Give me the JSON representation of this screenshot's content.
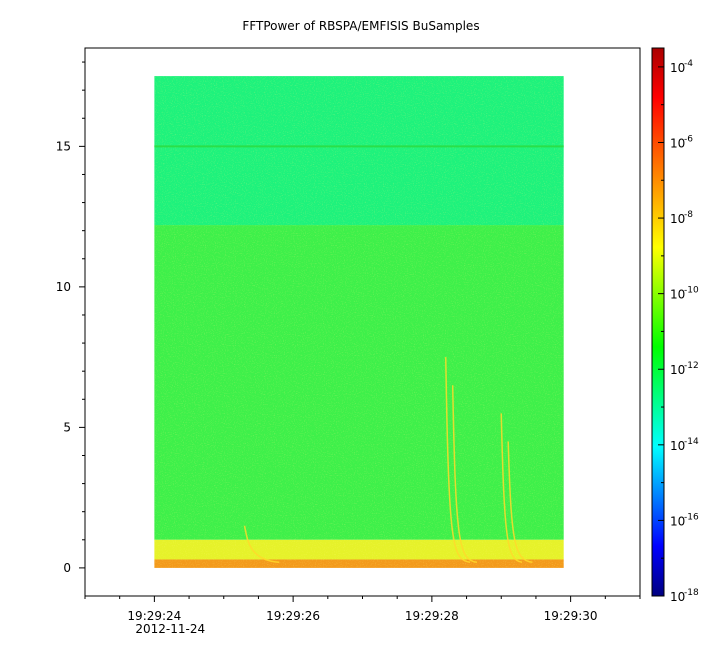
{
  "chart_data": {
    "type": "heatmap",
    "title": "FFTPower of RBSPA/EMFISIS  BuSamples",
    "xlabel": "",
    "ylabel": "",
    "x_ticks": [
      {
        "seconds": 24,
        "label": "19:29:24",
        "sublabel": "2012-11-24"
      },
      {
        "seconds": 26,
        "label": "19:29:26",
        "sublabel": ""
      },
      {
        "seconds": 28,
        "label": "19:29:28",
        "sublabel": ""
      },
      {
        "seconds": 30,
        "label": "19:29:30",
        "sublabel": ""
      }
    ],
    "xlim": [
      23,
      31
    ],
    "data_x_range": [
      24,
      29.9
    ],
    "ylim": [
      -1,
      18.5
    ],
    "data_y_range": [
      0,
      17.5
    ],
    "y_ticks": [
      0,
      5,
      10,
      15
    ],
    "colorbar": {
      "scale": "log",
      "range_exponent": [
        -18,
        -3.5
      ],
      "tick_base": "10",
      "tick_exponents": [
        -18,
        -16,
        -14,
        -12,
        -10,
        -8,
        -6,
        -4
      ],
      "colors": [
        "#00007f",
        "#0000ff",
        "#0080ff",
        "#00ffff",
        "#00ff80",
        "#00ff00",
        "#80ff00",
        "#ffff00",
        "#ffaa00",
        "#ff5500",
        "#ff0000",
        "#aa0000"
      ]
    },
    "bands": [
      {
        "y_range": [
          12.2,
          17.5
        ],
        "level_exponent": -12.5,
        "color": "#1ef27c"
      },
      {
        "y_range": [
          1.0,
          12.2
        ],
        "level_exponent": -10.3,
        "color": "#3ef04a"
      },
      {
        "y_range": [
          0.3,
          1.0
        ],
        "level_exponent": -8.3,
        "color": "#e6f22a"
      },
      {
        "y_range": [
          0.0,
          0.3
        ],
        "level_exponent": -7.2,
        "color": "#f39a1c"
      }
    ],
    "lines": [
      {
        "y": 15.0,
        "level_exponent": -10,
        "color": "#2adf48"
      }
    ],
    "chorus_elements": [
      {
        "start_x": 28.2,
        "end_x": 28.55,
        "top_y": 7.5
      },
      {
        "start_x": 28.3,
        "end_x": 28.65,
        "top_y": 6.5
      },
      {
        "start_x": 29.0,
        "end_x": 29.3,
        "top_y": 5.5
      },
      {
        "start_x": 29.1,
        "end_x": 29.45,
        "top_y": 4.5
      },
      {
        "start_x": 25.3,
        "end_x": 25.8,
        "top_y": 1.5
      }
    ]
  }
}
